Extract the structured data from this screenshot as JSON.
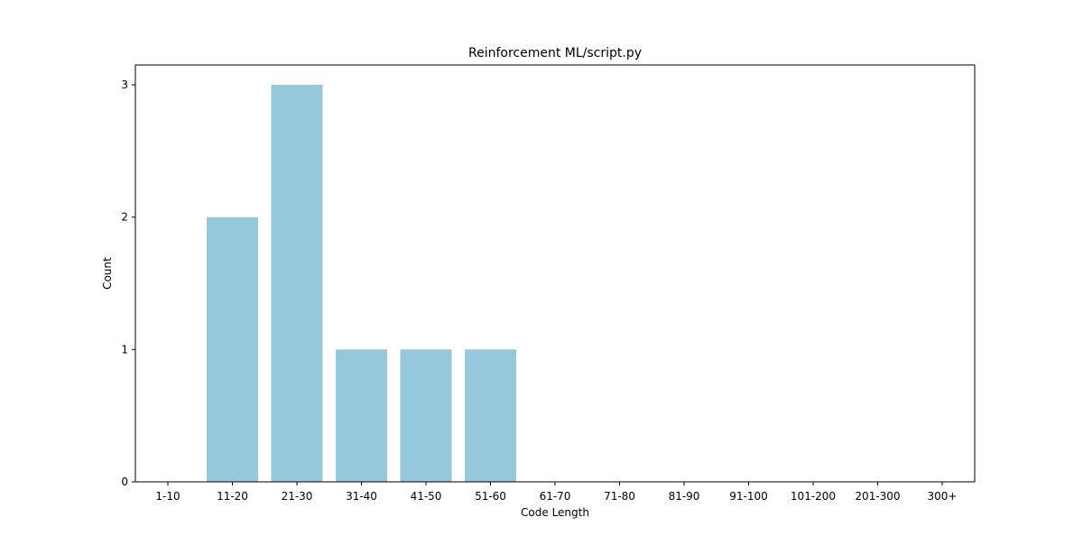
{
  "chart_data": {
    "type": "bar",
    "title": "Reinforcement ML/script.py",
    "xlabel": "Code Length",
    "ylabel": "Count",
    "categories": [
      "1-10",
      "11-20",
      "21-30",
      "31-40",
      "41-50",
      "51-60",
      "61-70",
      "71-80",
      "81-90",
      "91-100",
      "101-200",
      "201-300",
      "300+"
    ],
    "values": [
      0,
      2,
      3,
      1,
      1,
      1,
      0,
      0,
      0,
      0,
      0,
      0,
      0
    ],
    "ylim": [
      0,
      3.15
    ],
    "yticks": [
      "0",
      "1",
      "2",
      "3"
    ],
    "grid": false,
    "bar_color": "#96c8dc"
  }
}
